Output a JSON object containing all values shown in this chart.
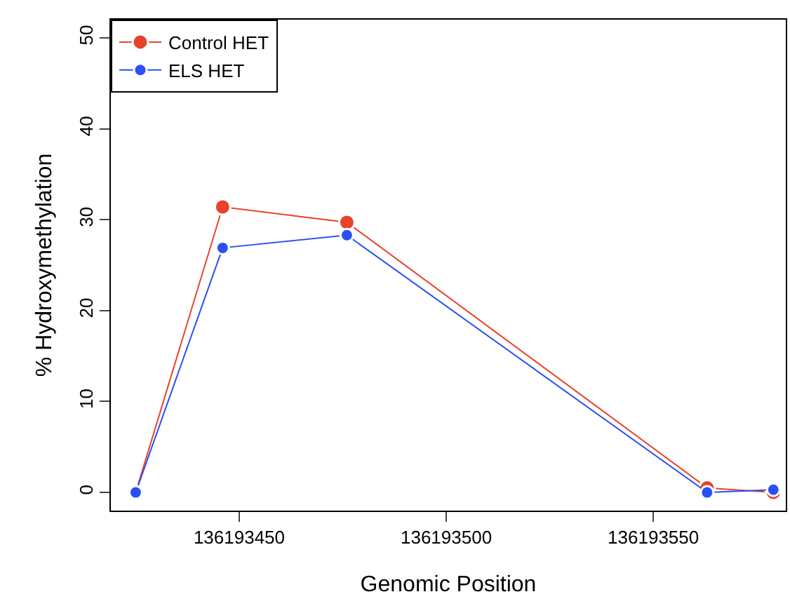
{
  "chart_data": {
    "type": "line",
    "xlabel": "Genomic Position",
    "ylabel": "% Hydroxymethylation",
    "x": [
      136193425,
      136193446,
      136193476,
      136193563,
      136193579
    ],
    "series": [
      {
        "name": "Control HET",
        "color": "#e8412c",
        "values": [
          0,
          31.4,
          29.7,
          0.5,
          0
        ]
      },
      {
        "name": "ELS HET",
        "color": "#2a4ff5",
        "values": [
          0,
          26.9,
          28.3,
          0,
          0.3
        ]
      }
    ],
    "xlim": [
      136193419,
      136193582
    ],
    "xticks": [
      136193450,
      136193500,
      136193550
    ],
    "ylim": [
      -2,
      52
    ],
    "yticks": [
      0,
      10,
      20,
      30,
      40,
      50
    ],
    "grid": false,
    "legend": "top left",
    "marker": "circle",
    "line_style": "solid"
  }
}
